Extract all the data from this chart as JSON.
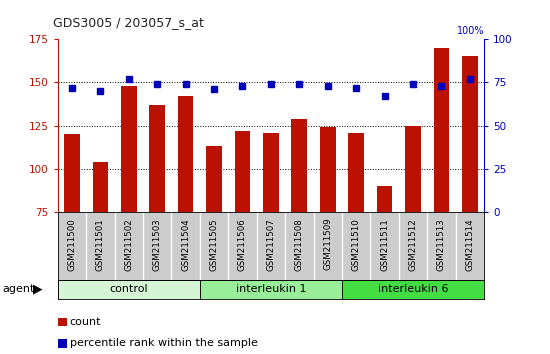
{
  "title": "GDS3005 / 203057_s_at",
  "samples": [
    "GSM211500",
    "GSM211501",
    "GSM211502",
    "GSM211503",
    "GSM211504",
    "GSM211505",
    "GSM211506",
    "GSM211507",
    "GSM211508",
    "GSM211509",
    "GSM211510",
    "GSM211511",
    "GSM211512",
    "GSM211513",
    "GSM211514"
  ],
  "counts": [
    120,
    104,
    148,
    137,
    142,
    113,
    122,
    121,
    129,
    124,
    121,
    90,
    125,
    170,
    165
  ],
  "percentiles": [
    72,
    70,
    77,
    74,
    74,
    71,
    73,
    74,
    74,
    73,
    72,
    67,
    74,
    73,
    77
  ],
  "groups": [
    {
      "label": "control",
      "start": 0,
      "end": 5,
      "color": "#d6f5d6"
    },
    {
      "label": "interleukin 1",
      "start": 5,
      "end": 10,
      "color": "#99ee99"
    },
    {
      "label": "interleukin 6",
      "start": 10,
      "end": 15,
      "color": "#44dd44"
    }
  ],
  "bar_color": "#bb1100",
  "dot_color": "#0000bb",
  "left_ylim": [
    75,
    175
  ],
  "left_yticks": [
    75,
    100,
    125,
    150,
    175
  ],
  "right_ylim": [
    0,
    100
  ],
  "right_yticks": [
    0,
    25,
    50,
    75,
    100
  ],
  "grid_values": [
    100,
    125,
    150
  ],
  "plot_bg": "#ffffff",
  "tick_label_bg": "#cccccc",
  "legend_count_label": "count",
  "legend_pct_label": "percentile rank within the sample"
}
